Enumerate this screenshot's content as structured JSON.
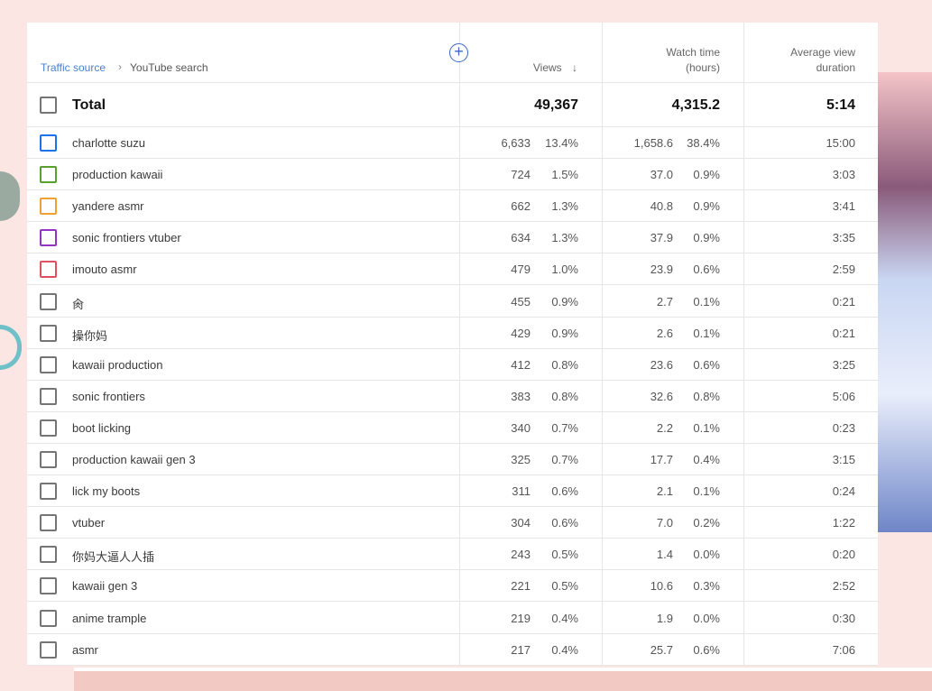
{
  "breadcrumb": {
    "parent": "Traffic source",
    "current": "YouTube search"
  },
  "headers": {
    "views": "Views",
    "watch_time_line1": "Watch time",
    "watch_time_line2": "(hours)",
    "avg_line1": "Average view",
    "avg_line2": "duration"
  },
  "total": {
    "label": "Total",
    "views": "49,367",
    "watch_time": "4,315.2",
    "avg": "5:14"
  },
  "rows": [
    {
      "term": "charlotte suzu",
      "views": "6,633",
      "views_pct": "13.4%",
      "watch": "1,658.6",
      "watch_pct": "38.4%",
      "avg": "15:00",
      "color": "#1a73e8"
    },
    {
      "term": "production kawaii",
      "views": "724",
      "views_pct": "1.5%",
      "watch": "37.0",
      "watch_pct": "0.9%",
      "avg": "3:03",
      "color": "#5aa02c"
    },
    {
      "term": "yandere asmr",
      "views": "662",
      "views_pct": "1.3%",
      "watch": "40.8",
      "watch_pct": "0.9%",
      "avg": "3:41",
      "color": "#f0a030"
    },
    {
      "term": "sonic frontiers vtuber",
      "views": "634",
      "views_pct": "1.3%",
      "watch": "37.9",
      "watch_pct": "0.9%",
      "avg": "3:35",
      "color": "#9334c4"
    },
    {
      "term": "imouto asmr",
      "views": "479",
      "views_pct": "1.0%",
      "watch": "23.9",
      "watch_pct": "0.6%",
      "avg": "2:59",
      "color": "#e05060"
    },
    {
      "term": "肏",
      "views": "455",
      "views_pct": "0.9%",
      "watch": "2.7",
      "watch_pct": "0.1%",
      "avg": "0:21",
      "color": "#757575"
    },
    {
      "term": "操你妈",
      "views": "429",
      "views_pct": "0.9%",
      "watch": "2.6",
      "watch_pct": "0.1%",
      "avg": "0:21",
      "color": "#757575"
    },
    {
      "term": "kawaii production",
      "views": "412",
      "views_pct": "0.8%",
      "watch": "23.6",
      "watch_pct": "0.6%",
      "avg": "3:25",
      "color": "#757575"
    },
    {
      "term": "sonic frontiers",
      "views": "383",
      "views_pct": "0.8%",
      "watch": "32.6",
      "watch_pct": "0.8%",
      "avg": "5:06",
      "color": "#757575"
    },
    {
      "term": "boot licking",
      "views": "340",
      "views_pct": "0.7%",
      "watch": "2.2",
      "watch_pct": "0.1%",
      "avg": "0:23",
      "color": "#757575"
    },
    {
      "term": "production kawaii gen 3",
      "views": "325",
      "views_pct": "0.7%",
      "watch": "17.7",
      "watch_pct": "0.4%",
      "avg": "3:15",
      "color": "#757575"
    },
    {
      "term": "lick my boots",
      "views": "311",
      "views_pct": "0.6%",
      "watch": "2.1",
      "watch_pct": "0.1%",
      "avg": "0:24",
      "color": "#757575"
    },
    {
      "term": "vtuber",
      "views": "304",
      "views_pct": "0.6%",
      "watch": "7.0",
      "watch_pct": "0.2%",
      "avg": "1:22",
      "color": "#757575"
    },
    {
      "term": "你妈大逼人人插",
      "views": "243",
      "views_pct": "0.5%",
      "watch": "1.4",
      "watch_pct": "0.0%",
      "avg": "0:20",
      "color": "#757575"
    },
    {
      "term": "kawaii gen 3",
      "views": "221",
      "views_pct": "0.5%",
      "watch": "10.6",
      "watch_pct": "0.3%",
      "avg": "2:52",
      "color": "#757575"
    },
    {
      "term": "anime trample",
      "views": "219",
      "views_pct": "0.4%",
      "watch": "1.9",
      "watch_pct": "0.0%",
      "avg": "0:30",
      "color": "#757575"
    },
    {
      "term": "asmr",
      "views": "217",
      "views_pct": "0.4%",
      "watch": "25.7",
      "watch_pct": "0.6%",
      "avg": "7:06",
      "color": "#757575"
    }
  ]
}
